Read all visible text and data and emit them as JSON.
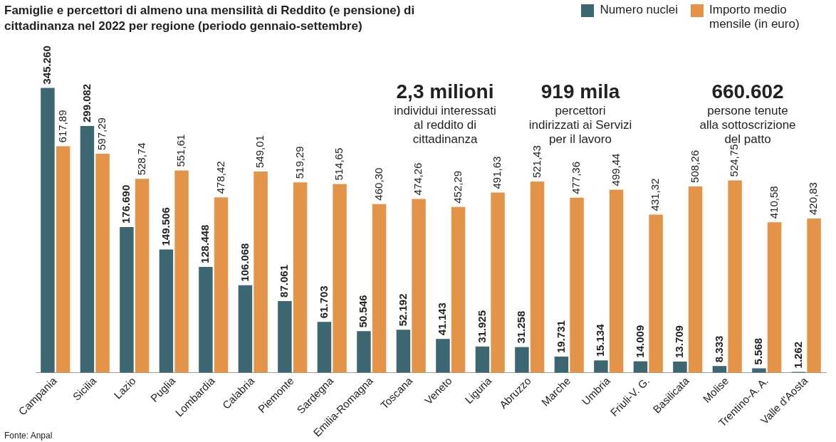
{
  "chart_data": {
    "type": "bar",
    "title": "Famiglie e percettori di almeno una mensilità di Reddito (e pensione) di cittadinanza nel 2022 per regione (periodo gennaio-settembre)",
    "categories": [
      "Campania",
      "Sicilia",
      "Lazio",
      "Puglia",
      "Lombardia",
      "Calabria",
      "Piemonte",
      "Sardegna",
      "Emilia-Romagna",
      "Toscana",
      "Veneto",
      "Liguria",
      "Abruzzo",
      "Marche",
      "Umbria",
      "Friuli-V. G.",
      "Basilicata",
      "Molise",
      "Trentino-A. A.",
      "Valle d'Aosta"
    ],
    "series": [
      {
        "name": "Numero nuclei",
        "color": "#3d6673",
        "values": [
          345260,
          299082,
          176690,
          149506,
          128448,
          106068,
          87061,
          61703,
          50546,
          52192,
          41143,
          31925,
          31258,
          19731,
          15134,
          14009,
          13709,
          8333,
          5568,
          1262
        ],
        "value_labels": [
          "345.260",
          "299.082",
          "176.690",
          "149.506",
          "128.448",
          "106.068",
          "87.061",
          "61.703",
          "50.546",
          "52.192",
          "41.143",
          "31.925",
          "31.258",
          "19.731",
          "15.134",
          "14.009",
          "13.709",
          "8.333",
          "5.568",
          "1.262"
        ]
      },
      {
        "name": "Importo medio mensile (in euro)",
        "color": "#e39449",
        "axis": "y2",
        "values": [
          617.89,
          597.29,
          528.74,
          551.61,
          478.42,
          549.01,
          519.29,
          514.65,
          460.3,
          474.26,
          452.29,
          491.63,
          521.43,
          477.36,
          499.44,
          431.32,
          508.26,
          524.75,
          410.58,
          420.83
        ],
        "value_labels": [
          "617,89",
          "597,29",
          "528,74",
          "551,61",
          "478,42",
          "549,01",
          "519,29",
          "514,65",
          "460,30",
          "474,26",
          "452,29",
          "491,63",
          "521,43",
          "477,36",
          "499,44",
          "431,32",
          "508,26",
          "524,75",
          "410,58",
          "420,83"
        ]
      }
    ],
    "annotations": [
      "2,3 milioni\nindividui interessati\nal reddito di\ncittadinanza",
      "919 mila\npercettori\nindirizzati ai Servizi\nper il lavoro",
      "660.602\npersone tenute\nalla sottoscrizione\ndel patto",
      "Fonte: Anpal"
    ],
    "legend": "top right",
    "tick_labels": "x",
    "grid": false
  }
}
